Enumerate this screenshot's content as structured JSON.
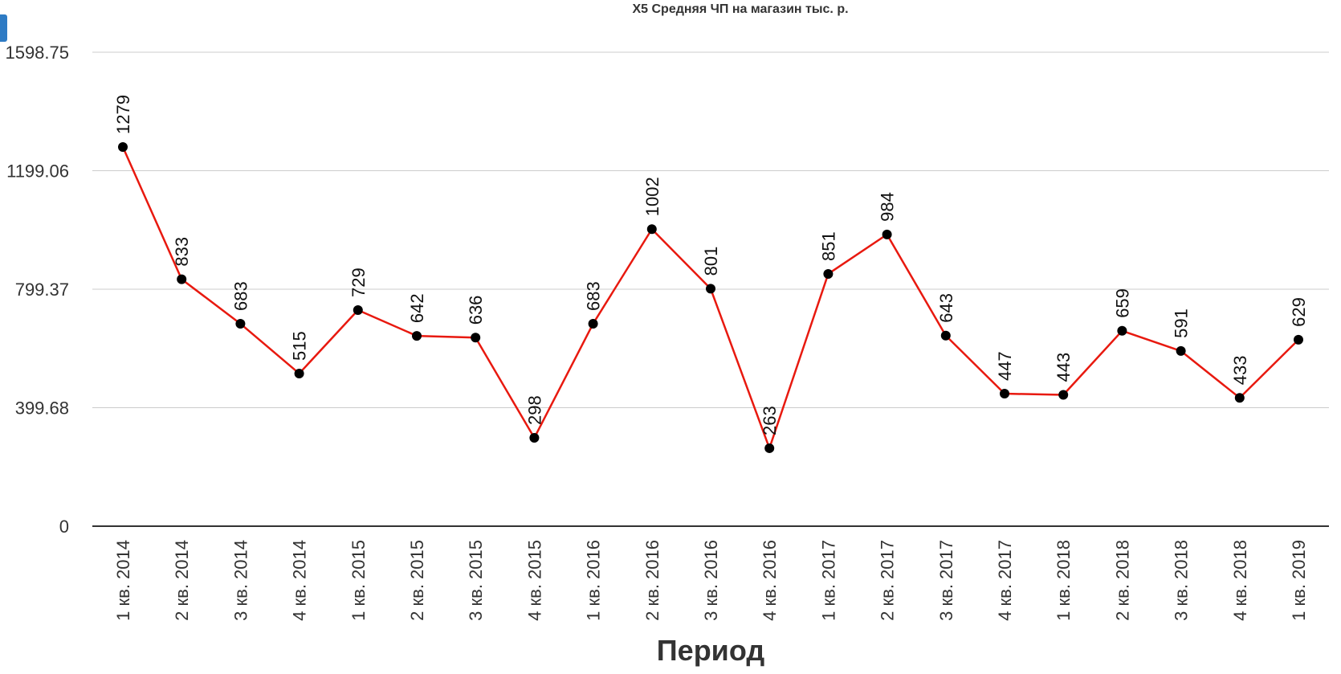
{
  "chart_data": {
    "type": "line",
    "title": "X5 Средняя ЧП на магазин тыс. р.",
    "xlabel": "Период",
    "ylabel": "",
    "ylim": [
      0,
      1598.75
    ],
    "yticks": [
      "0",
      "399.68",
      "799.37",
      "1199.06",
      "1598.75"
    ],
    "yticks_values": [
      0,
      399.68,
      799.37,
      1199.06,
      1598.75
    ],
    "grid": true,
    "categories": [
      "1 кв. 2014",
      "2 кв. 2014",
      "3 кв. 2014",
      "4 кв. 2014",
      "1 кв. 2015",
      "2 кв. 2015",
      "3 кв. 2015",
      "4 кв. 2015",
      "1 кв. 2016",
      "2 кв. 2016",
      "3 кв. 2016",
      "4 кв. 2016",
      "1 кв. 2017",
      "2 кв. 2017",
      "3 кв. 2017",
      "4 кв. 2017",
      "1 кв. 2018",
      "2 кв. 2018",
      "3 кв. 2018",
      "4 кв. 2018",
      "1 кв. 2019"
    ],
    "series": [
      {
        "values": [
          1279,
          833,
          683,
          515,
          729,
          642,
          636,
          298,
          683,
          1002,
          801,
          263,
          851,
          984,
          643,
          447,
          443,
          659,
          591,
          433,
          629
        ],
        "color": "#e8190f"
      }
    ],
    "marker_color": "#000000"
  }
}
